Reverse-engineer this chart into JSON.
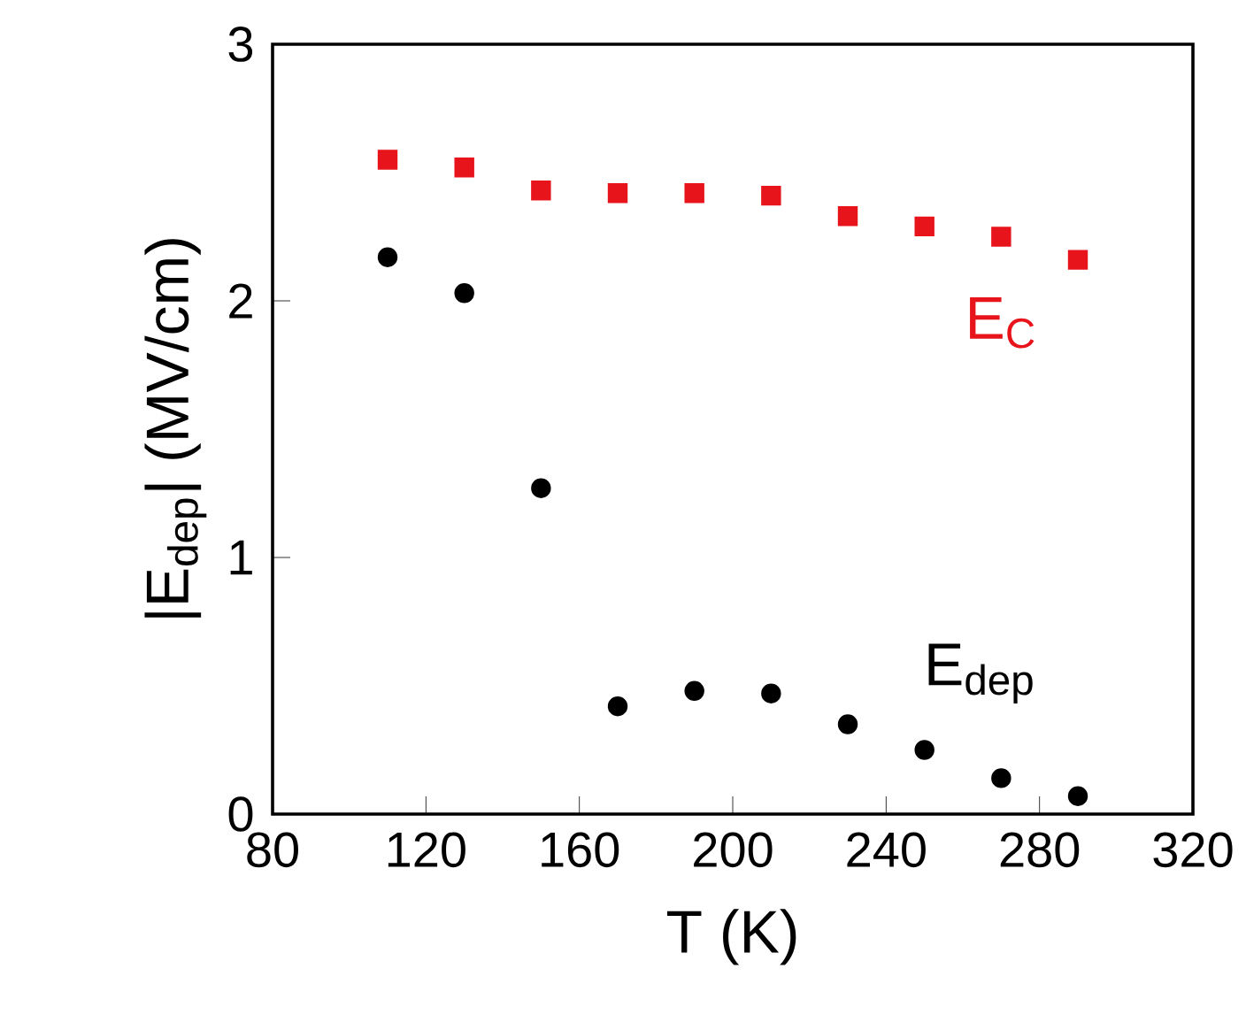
{
  "chart_data": {
    "type": "scatter",
    "xlabel": "T (K)",
    "ylabel": "|E$_{dep}$| (MV/cm)",
    "x": [
      110,
      130,
      150,
      170,
      190,
      210,
      230,
      250,
      270,
      290
    ],
    "series": [
      {
        "name": "E$_{C}$",
        "color": "#e8141b",
        "marker": "square",
        "values": [
          2.55,
          2.52,
          2.43,
          2.42,
          2.42,
          2.41,
          2.33,
          2.29,
          2.25,
          2.16
        ]
      },
      {
        "name": "E$_{dep}$",
        "color": "#000000",
        "marker": "circle",
        "values": [
          2.17,
          2.03,
          1.27,
          0.42,
          0.48,
          0.47,
          0.35,
          0.25,
          0.14,
          0.07
        ]
      }
    ],
    "xlim": [
      80,
      320
    ],
    "ylim": [
      0,
      3
    ],
    "xticks": [
      80,
      120,
      160,
      200,
      240,
      280,
      320
    ],
    "yticks": [
      0,
      1,
      2,
      3
    ],
    "legend": false,
    "grid": false
  }
}
